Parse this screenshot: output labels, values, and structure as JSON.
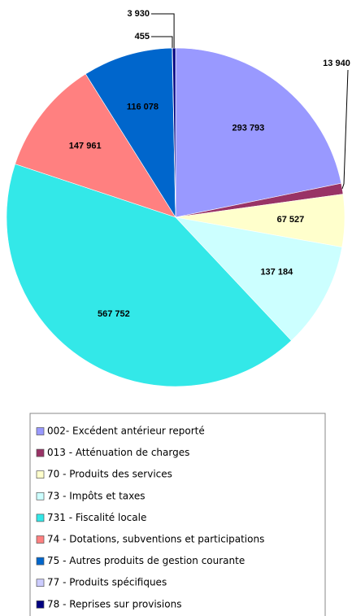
{
  "chart_data": {
    "type": "pie",
    "categories": [
      "002- Excédent antérieur reporté",
      "013 - Atténuation de charges",
      "70 - Produits des services",
      "73 - Impôts et taxes",
      "731 - Fiscalité locale",
      "74 - Dotations, subventions et participations",
      "75 - Autres produits de gestion courante",
      "77 - Produits spécifiques",
      "78 - Reprises sur provisions"
    ],
    "values": [
      293793,
      13940,
      67527,
      137184,
      567752,
      147961,
      116078,
      455,
      3930
    ],
    "value_labels": [
      "293 793",
      "13 940",
      "67 527",
      "137 184",
      "567 752",
      "147 961",
      "116 078",
      "455",
      "3 930"
    ],
    "colors": [
      "#9999ff",
      "#993366",
      "#ffffcc",
      "#ccffff",
      "#33e8e8",
      "#ff8080",
      "#0066cc",
      "#ccccff",
      "#000080"
    ],
    "legend": "bottom"
  }
}
